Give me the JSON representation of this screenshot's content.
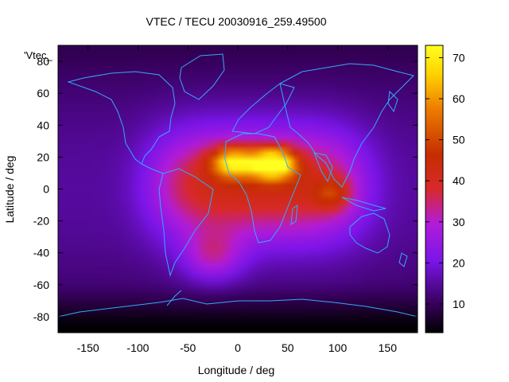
{
  "chart_data": {
    "type": "heatmap",
    "title": "VTEC / TECU 20030916_259.49500",
    "xlabel": "Longitude / deg",
    "ylabel": "Latitude / deg",
    "series_key": "'Vtec_",
    "xlim": [
      -180,
      180
    ],
    "ylim": [
      -90,
      90
    ],
    "x_ticks": [
      -150,
      -100,
      -50,
      0,
      50,
      100,
      150
    ],
    "y_ticks": [
      -80,
      -60,
      -40,
      -20,
      0,
      20,
      40,
      60,
      80
    ],
    "colorbar": {
      "range": [
        3,
        73
      ],
      "ticks": [
        10,
        20,
        30,
        40,
        50,
        60,
        70
      ],
      "palette": "black-purple-red-orange-yellow"
    },
    "features": [
      {
        "name": "primary_peak",
        "lon": 35,
        "lat": 16,
        "vtec": 73
      },
      {
        "name": "secondary_peak",
        "lon": -5,
        "lat": 17,
        "vtec": 62
      },
      {
        "name": "equatorial_band",
        "lon_range": [
          -60,
          100
        ],
        "lat_range": [
          -20,
          25
        ],
        "vtec": 40
      },
      {
        "name": "south_atlantic_lobe",
        "lon": -25,
        "lat": -42,
        "vtec": 38
      },
      {
        "name": "indian_ocean_lobe",
        "lon": 95,
        "lat": -3,
        "vtec": 42
      },
      {
        "name": "polar_minima",
        "lat_range": [
          -90,
          -60
        ],
        "vtec": 5
      }
    ]
  }
}
